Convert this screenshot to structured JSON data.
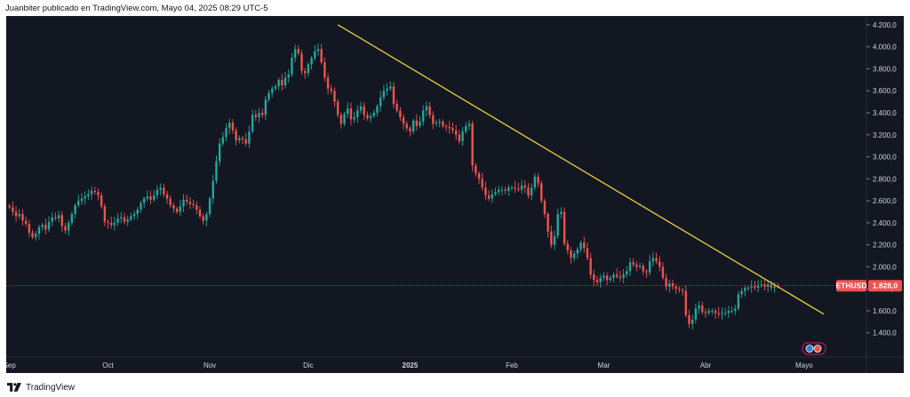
{
  "header": {
    "text": "Juanbiter publicado en TradingView.com, Mayo 04, 2025 08:29 UTC-5"
  },
  "footer": {
    "brand": "TradingView",
    "logo_icon": "tradingview-logo-icon"
  },
  "colors": {
    "background": "#131722",
    "up": "#26a69a",
    "down": "#ef5350",
    "trendline": "#e6d33a",
    "price_line": "#ef5350",
    "axis_text": "#d1d4dc",
    "grid": "#1f2330"
  },
  "chart_data": {
    "type": "candlestick",
    "symbol": "ETHUSD",
    "last_price": 1828.0,
    "last_price_label": "1.828,0",
    "y_axis": {
      "range": [
        1180,
        4280
      ],
      "ticks": [
        1400,
        1600,
        1800,
        2000,
        2200,
        2400,
        2600,
        2800,
        3000,
        3200,
        3400,
        3600,
        3800,
        4000,
        4200
      ],
      "tick_labels": [
        "1.400,0",
        "1.600,0",
        "1.800,0",
        "2.000,0",
        "2.200,0",
        "2.400,0",
        "2.600,0",
        "2.800,0",
        "3.000,0",
        "3.200,0",
        "3.400,0",
        "3.600,0",
        "3.800,0",
        "4.000,0",
        "4.200,0"
      ]
    },
    "x_axis": {
      "range": [
        "2024-08-31",
        "2025-05-20"
      ],
      "ticks": [
        "2024-09-01",
        "2024-10-01",
        "2024-11-01",
        "2024-12-01",
        "2025-01-01",
        "2025-02-01",
        "2025-03-01",
        "2025-04-01",
        "2025-05-01"
      ],
      "tick_labels": [
        "Sep",
        "Oct",
        "Nov",
        "Dic",
        "2025",
        "Feb",
        "Mar",
        "Abr",
        "Mayo"
      ]
    },
    "trendline": {
      "start": {
        "date": "2024-12-10",
        "price": 4200
      },
      "end": {
        "date": "2025-05-07",
        "price": 1570
      }
    },
    "grid": false,
    "start_date": "2024-09-01",
    "closes": [
      2540,
      2500,
      2460,
      2480,
      2420,
      2390,
      2310,
      2270,
      2300,
      2360,
      2380,
      2340,
      2410,
      2450,
      2440,
      2470,
      2370,
      2330,
      2400,
      2480,
      2560,
      2600,
      2620,
      2640,
      2660,
      2690,
      2680,
      2650,
      2550,
      2410,
      2400,
      2380,
      2400,
      2440,
      2450,
      2410,
      2430,
      2460,
      2480,
      2520,
      2580,
      2620,
      2640,
      2610,
      2650,
      2700,
      2720,
      2660,
      2620,
      2560,
      2530,
      2500,
      2550,
      2610,
      2590,
      2570,
      2560,
      2520,
      2460,
      2420,
      2480,
      2620,
      2780,
      2960,
      3120,
      3180,
      3260,
      3310,
      3240,
      3150,
      3170,
      3160,
      3120,
      3230,
      3380,
      3360,
      3400,
      3380,
      3520,
      3580,
      3620,
      3640,
      3700,
      3650,
      3720,
      3750,
      3900,
      3980,
      3940,
      3780,
      3760,
      3840,
      3900,
      3960,
      3980,
      3860,
      3720,
      3620,
      3600,
      3500,
      3380,
      3300,
      3390,
      3440,
      3340,
      3360,
      3420,
      3460,
      3380,
      3350,
      3370,
      3400,
      3460,
      3540,
      3600,
      3620,
      3640,
      3480,
      3420,
      3360,
      3300,
      3260,
      3230,
      3330,
      3280,
      3320,
      3420,
      3460,
      3380,
      3300,
      3310,
      3320,
      3280,
      3270,
      3260,
      3240,
      3200,
      3140,
      3230,
      3280,
      3300,
      2920,
      2850,
      2800,
      2720,
      2650,
      2620,
      2660,
      2680,
      2700,
      2700,
      2690,
      2720,
      2720,
      2710,
      2700,
      2740,
      2720,
      2650,
      2720,
      2820,
      2760,
      2600,
      2480,
      2320,
      2200,
      2280,
      2480,
      2500,
      2210,
      2150,
      2080,
      2120,
      2160,
      2220,
      2170,
      2080,
      1930,
      1880,
      1860,
      1900,
      1920,
      1880,
      1900,
      1930,
      1910,
      1900,
      1930,
      1960,
      2040,
      2020,
      2000,
      2010,
      1960,
      1950,
      2050,
      2080,
      2050,
      2000,
      1900,
      1820,
      1850,
      1820,
      1800,
      1790,
      1780,
      1560,
      1480,
      1520,
      1620,
      1650,
      1590,
      1580,
      1600,
      1600,
      1580,
      1570,
      1580,
      1580,
      1600,
      1600,
      1620,
      1750,
      1780,
      1810,
      1810,
      1820,
      1810,
      1830,
      1840,
      1820,
      1840,
      1810,
      1830,
      1828
    ]
  }
}
